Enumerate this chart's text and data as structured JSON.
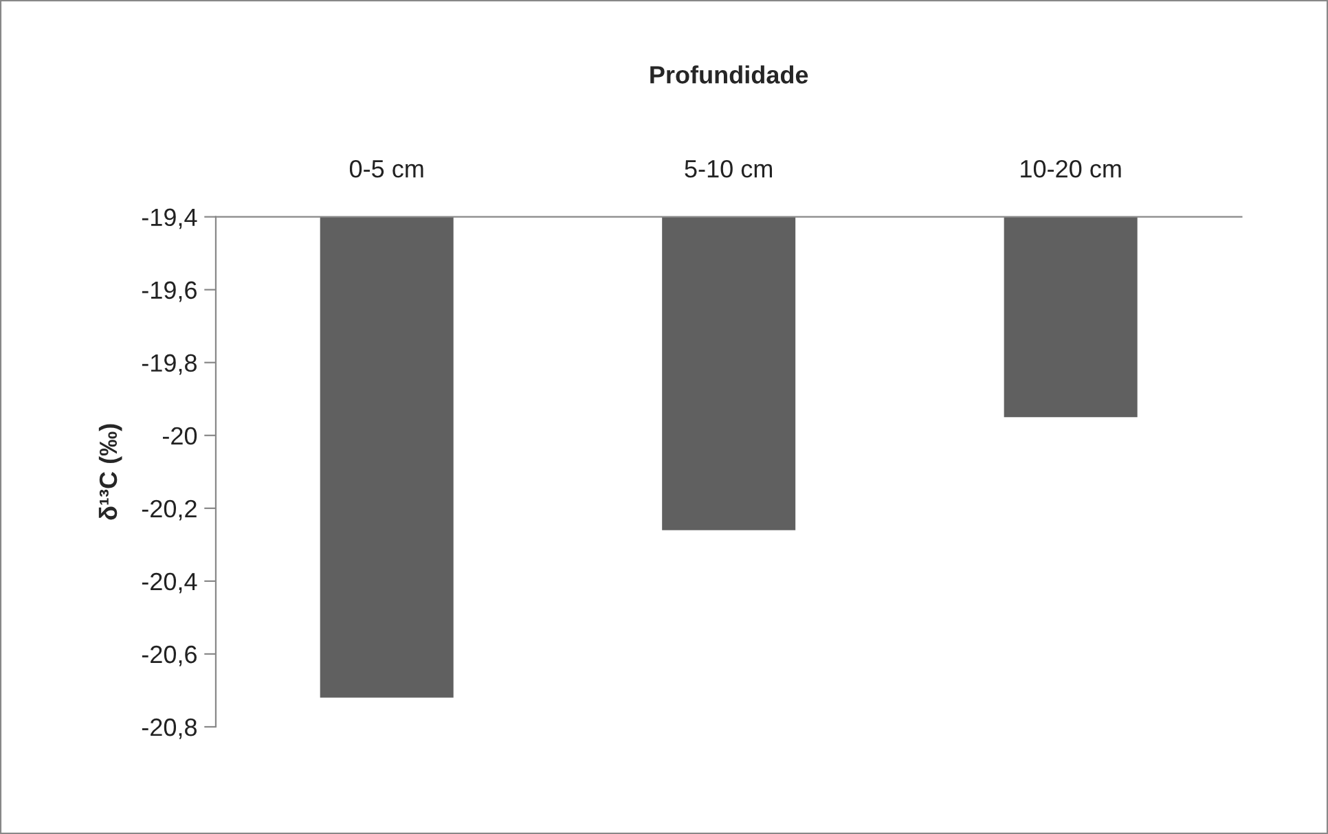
{
  "chart_data": {
    "type": "bar",
    "title": "Profundidade",
    "ylabel": "δ¹³C (‰)",
    "categories": [
      "0-5 cm",
      "5-10 cm",
      "10-20 cm"
    ],
    "values": [
      -20.72,
      -20.26,
      -19.95
    ],
    "color": "#606060",
    "ylim": [
      -20.8,
      -19.4
    ],
    "yticks": [
      {
        "value": -20.8,
        "label": "-20,8"
      },
      {
        "value": -20.6,
        "label": "-20,6"
      },
      {
        "value": -20.4,
        "label": "-20,4"
      },
      {
        "value": -20.2,
        "label": "-20,2"
      },
      {
        "value": -20,
        "label": "-20"
      },
      {
        "value": -19.8,
        "label": "-19,8"
      },
      {
        "value": -19.6,
        "label": "-19,6"
      },
      {
        "value": -19.4,
        "label": "-19,4"
      }
    ],
    "grid": false,
    "legend": false
  }
}
